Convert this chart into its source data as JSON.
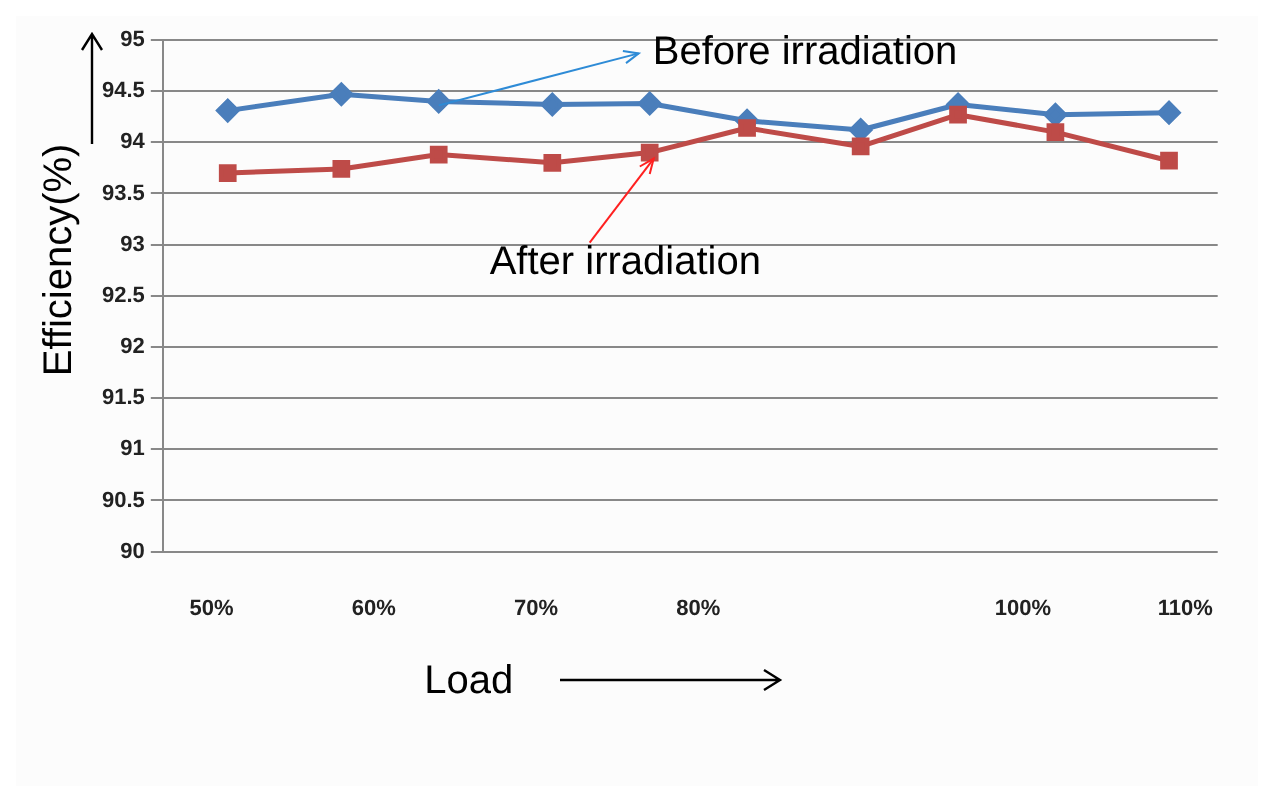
{
  "chart_data": {
    "type": "line",
    "xlabel": "Load",
    "ylabel": "Efficiency(%)",
    "x": [
      51,
      58,
      64,
      71,
      77,
      83,
      90,
      96,
      102,
      109
    ],
    "xlim": [
      47,
      112
    ],
    "xticks": [
      {
        "value": 50,
        "label": "50%"
      },
      {
        "value": 60,
        "label": "60%"
      },
      {
        "value": 70,
        "label": "70%"
      },
      {
        "value": 80,
        "label": "80%"
      },
      {
        "value": 100,
        "label": "100%"
      },
      {
        "value": 110,
        "label": "110%"
      }
    ],
    "ylim": [
      90,
      95
    ],
    "yticks": [
      90,
      90.5,
      91,
      91.5,
      92,
      92.5,
      93,
      93.5,
      94,
      94.5,
      95
    ],
    "series": [
      {
        "color": "#4a7ebb",
        "marker": "diamond",
        "values": [
          94.31,
          94.47,
          94.4,
          94.37,
          94.38,
          94.21,
          94.12,
          94.37,
          94.27,
          94.29
        ]
      },
      {
        "color": "#be4b48",
        "marker": "square",
        "values": [
          93.7,
          93.74,
          93.88,
          93.8,
          93.9,
          94.14,
          93.96,
          94.27,
          94.1,
          93.82
        ]
      }
    ],
    "annotations": [
      {
        "text": "Before irradiation",
        "x": 64,
        "y": 94.4
      },
      {
        "text": "After irradiation",
        "x": 77,
        "y": 93.9
      }
    ],
    "grid": "y",
    "legend": false,
    "line_style": "solid"
  }
}
